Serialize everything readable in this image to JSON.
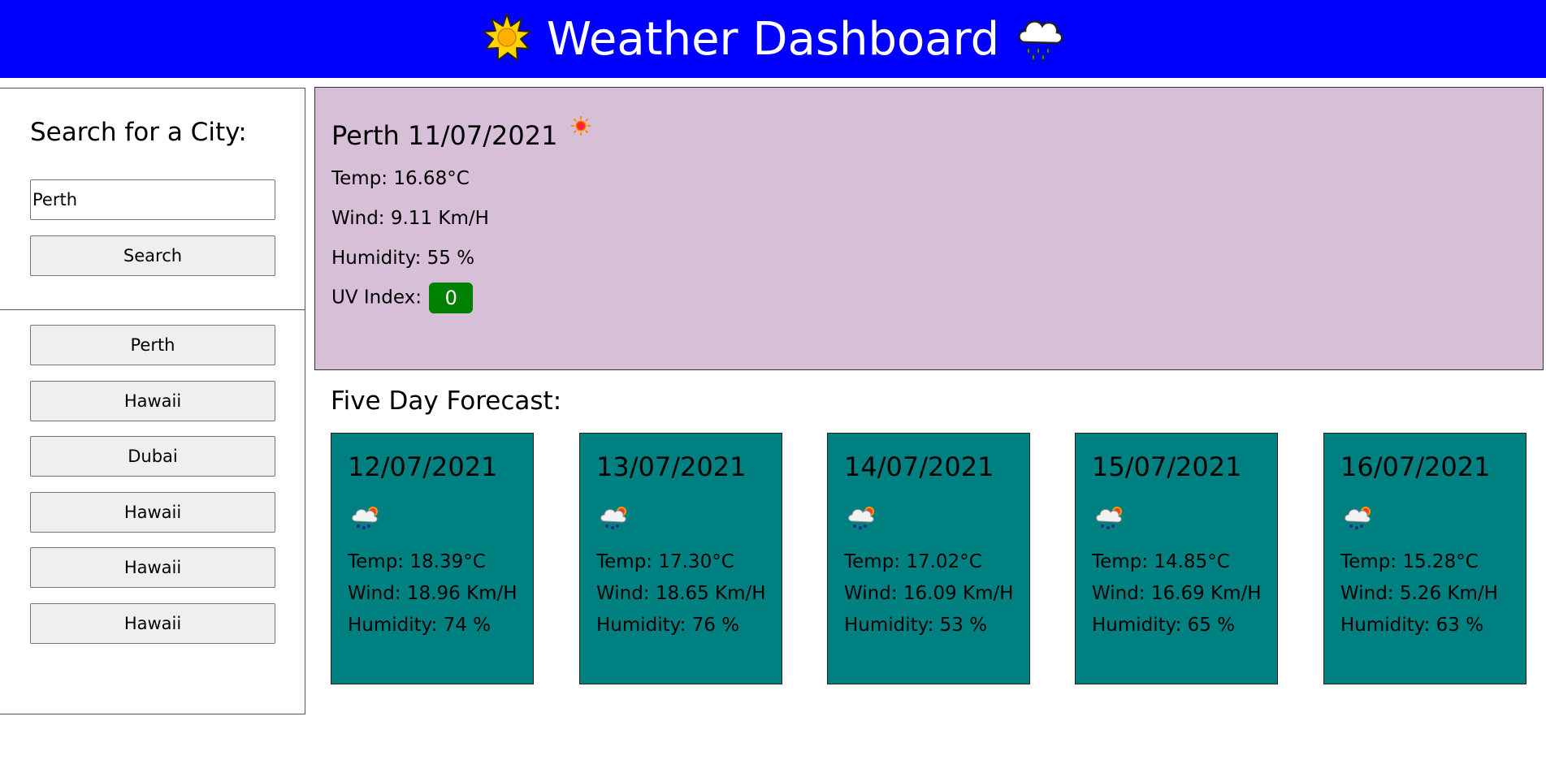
{
  "header": {
    "title": "Weather Dashboard",
    "left_icon": "sun-icon",
    "right_icon": "rain-cloud-icon",
    "background": "#0000ff"
  },
  "search": {
    "heading": "Search for a City:",
    "input_value": "Perth",
    "button_label": "Search"
  },
  "history": [
    "Perth",
    "Hawaii",
    "Dubai",
    "Hawaii",
    "Hawaii",
    "Hawaii"
  ],
  "current": {
    "title": "Perth 11/07/2021",
    "icon": "sun-icon",
    "temp": "Temp: 16.68°C",
    "wind": "Wind: 9.11 Km/H",
    "humidity": "Humidity: 55 %",
    "uv_label": "UV Index:",
    "uv_value": "0",
    "background": "#d8bfd8",
    "uv_color": "#008000"
  },
  "forecast": {
    "heading": "Five Day Forecast:",
    "card_color": "#008080",
    "days": [
      {
        "date": "12/07/2021",
        "icon": "rain-sun-icon",
        "temp": "Temp: 18.39°C",
        "wind": "Wind: 18.96 Km/H",
        "humidity": "Humidity: 74 %"
      },
      {
        "date": "13/07/2021",
        "icon": "rain-sun-icon",
        "temp": "Temp: 17.30°C",
        "wind": "Wind: 18.65 Km/H",
        "humidity": "Humidity: 76 %"
      },
      {
        "date": "14/07/2021",
        "icon": "rain-sun-icon",
        "temp": "Temp: 17.02°C",
        "wind": "Wind: 16.09 Km/H",
        "humidity": "Humidity: 53 %"
      },
      {
        "date": "15/07/2021",
        "icon": "rain-sun-icon",
        "temp": "Temp: 14.85°C",
        "wind": "Wind: 16.69 Km/H",
        "humidity": "Humidity: 65 %"
      },
      {
        "date": "16/07/2021",
        "icon": "rain-sun-icon",
        "temp": "Temp: 15.28°C",
        "wind": "Wind: 5.26 Km/H",
        "humidity": "Humidity: 63 %"
      }
    ]
  }
}
